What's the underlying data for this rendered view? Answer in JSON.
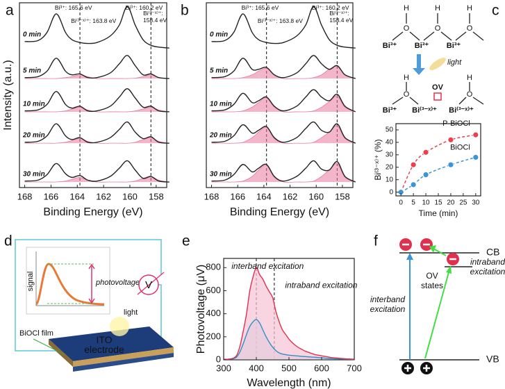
{
  "chart_data": [
    {
      "type": "line",
      "panel": "a",
      "xlabel": "Binding Energy (eV)",
      "ylabel": "Intensity (a.u.)",
      "legend": "left",
      "x": [
        168,
        167,
        166.3,
        165.6,
        164.9,
        164.4,
        163.8,
        163.2,
        162.5,
        161.5,
        160.8,
        160.2,
        159.6,
        159,
        158.4,
        157.8,
        157
      ],
      "xlim": [
        168.4,
        157.2
      ],
      "xticks": [
        168,
        166,
        164,
        162,
        160,
        158
      ],
      "ylim": [
        0,
        10
      ],
      "series": [
        {
          "name": "0 min",
          "color": "#222222",
          "values": [
            7.9,
            7.95,
            8.4,
            9.4,
            8.4,
            8.0,
            7.85,
            7.8,
            7.85,
            8.2,
            8.8,
            9.8,
            8.8,
            8.0,
            7.7,
            7.6,
            7.55
          ]
        },
        {
          "name": "5 min",
          "color": "#222222",
          "values": [
            5.95,
            6.0,
            6.3,
            7.0,
            6.3,
            6.1,
            6.15,
            5.95,
            5.95,
            6.2,
            6.7,
            7.15,
            6.6,
            6.1,
            6.15,
            5.95,
            5.9
          ]
        },
        {
          "name": "10 min",
          "color": "#222222",
          "values": [
            4.15,
            4.2,
            4.5,
            5.2,
            4.5,
            4.3,
            4.4,
            4.15,
            4.15,
            4.4,
            4.9,
            5.35,
            4.85,
            4.35,
            4.4,
            4.15,
            4.1
          ]
        },
        {
          "name": "20 min",
          "color": "#222222",
          "values": [
            2.45,
            2.5,
            2.8,
            3.45,
            2.8,
            2.6,
            2.7,
            2.45,
            2.45,
            2.7,
            3.15,
            3.55,
            3.0,
            2.65,
            2.75,
            2.45,
            2.4
          ]
        },
        {
          "name": "30 min",
          "color": "#222222",
          "values": [
            0.35,
            0.4,
            0.7,
            1.3,
            0.75,
            0.55,
            0.65,
            0.4,
            0.35,
            0.6,
            1.05,
            1.45,
            0.95,
            0.5,
            0.6,
            0.35,
            0.3
          ]
        }
      ],
      "components": [
        {
          "color": "#e8799f",
          "values": [
            5.9,
            5.9,
            5.9,
            5.9,
            5.95,
            6.0,
            6.1,
            6.0,
            5.9,
            5.9,
            5.9,
            5.9,
            5.92,
            6.0,
            6.1,
            5.95,
            5.9
          ]
        },
        {
          "color": "#e8799f",
          "values": [
            4.1,
            4.1,
            4.1,
            4.1,
            4.15,
            4.25,
            4.35,
            4.2,
            4.1,
            4.1,
            4.1,
            4.1,
            4.15,
            4.25,
            4.35,
            4.2,
            4.1
          ]
        },
        {
          "color": "#e8799f",
          "values": [
            2.4,
            2.4,
            2.4,
            2.4,
            2.45,
            2.55,
            2.65,
            2.5,
            2.4,
            2.4,
            2.4,
            2.4,
            2.45,
            2.6,
            2.7,
            2.5,
            2.4
          ]
        },
        {
          "color": "#e8799f",
          "values": [
            0.3,
            0.3,
            0.3,
            0.3,
            0.35,
            0.45,
            0.55,
            0.4,
            0.3,
            0.3,
            0.3,
            0.3,
            0.35,
            0.5,
            0.6,
            0.4,
            0.3
          ]
        }
      ],
      "ref_lines": [
        163.8,
        158.4
      ],
      "annotations": [
        {
          "text": "Bi³⁺: 165.6 eV",
          "color": "#222222"
        },
        {
          "text": "Bi³⁺: 160.2 eV",
          "color": "#222222"
        },
        {
          "text": "Bi⁽³⁻ˣ⁾⁺: 163.8 eV",
          "color": "#d22f5a"
        },
        {
          "text": "Bi⁽³⁻ˣ⁾⁺: 158.4 eV",
          "color": "#d22f5a"
        }
      ]
    },
    {
      "type": "line",
      "panel": "b",
      "xlabel": "Binding Energy (eV)",
      "legend": "left",
      "x": [
        168,
        167,
        166.3,
        165.6,
        164.9,
        164.4,
        163.8,
        163.2,
        162.5,
        161.5,
        160.8,
        160.2,
        159.6,
        159,
        158.4,
        157.8,
        157
      ],
      "xlim": [
        168.4,
        157.2
      ],
      "xticks": [
        168,
        166,
        164,
        162,
        160,
        158
      ],
      "ylim": [
        0,
        10
      ],
      "series": [
        {
          "name": "0 min",
          "color": "#222222",
          "values": [
            7.9,
            7.95,
            8.4,
            9.4,
            8.4,
            8.0,
            7.85,
            7.8,
            7.85,
            8.2,
            8.8,
            9.8,
            8.8,
            8.0,
            7.7,
            7.6,
            7.55
          ]
        },
        {
          "name": "5 min",
          "color": "#222222",
          "values": [
            5.95,
            6.0,
            6.3,
            7.0,
            6.4,
            6.4,
            6.5,
            6.1,
            5.95,
            6.2,
            6.7,
            7.15,
            6.7,
            6.4,
            6.6,
            6.1,
            5.9
          ]
        },
        {
          "name": "10 min",
          "color": "#222222",
          "values": [
            4.15,
            4.2,
            4.5,
            5.1,
            4.6,
            4.7,
            4.9,
            4.4,
            4.15,
            4.4,
            4.9,
            5.3,
            4.9,
            4.7,
            5.05,
            4.4,
            4.1
          ]
        },
        {
          "name": "20 min",
          "color": "#222222",
          "values": [
            2.45,
            2.5,
            2.8,
            3.4,
            2.95,
            3.1,
            3.3,
            2.7,
            2.45,
            2.7,
            3.2,
            3.55,
            3.1,
            3.0,
            3.45,
            2.7,
            2.4
          ]
        },
        {
          "name": "30 min",
          "color": "#222222",
          "values": [
            0.35,
            0.4,
            0.7,
            1.25,
            0.85,
            1.05,
            1.25,
            0.6,
            0.35,
            0.6,
            1.05,
            1.45,
            1.0,
            0.95,
            1.4,
            0.6,
            0.3
          ]
        }
      ],
      "components": [
        {
          "color": "#e8799f",
          "values": [
            5.9,
            5.9,
            5.9,
            5.95,
            6.1,
            6.3,
            6.45,
            6.1,
            5.9,
            5.9,
            5.9,
            5.95,
            6.1,
            6.4,
            6.55,
            6.1,
            5.9
          ]
        },
        {
          "color": "#e8799f",
          "values": [
            4.1,
            4.1,
            4.1,
            4.15,
            4.35,
            4.6,
            4.85,
            4.35,
            4.1,
            4.1,
            4.1,
            4.15,
            4.35,
            4.65,
            4.95,
            4.35,
            4.1
          ]
        },
        {
          "color": "#e8799f",
          "values": [
            2.4,
            2.4,
            2.4,
            2.45,
            2.7,
            3.0,
            3.25,
            2.65,
            2.4,
            2.4,
            2.4,
            2.45,
            2.7,
            3.0,
            3.35,
            2.65,
            2.4
          ]
        },
        {
          "color": "#e8799f",
          "values": [
            0.3,
            0.3,
            0.3,
            0.35,
            0.6,
            0.95,
            1.2,
            0.55,
            0.3,
            0.3,
            0.3,
            0.35,
            0.6,
            0.95,
            1.3,
            0.55,
            0.3
          ]
        }
      ],
      "ref_lines": [
        163.8,
        158.4
      ],
      "annotations": [
        {
          "text": "Bi³⁺: 165.6 eV",
          "color": "#222222"
        },
        {
          "text": "Bi³⁺: 160.2 eV",
          "color": "#222222"
        },
        {
          "text": "Bi⁽³⁻ˣ⁾⁺: 163.8 eV",
          "color": "#d22f5a"
        },
        {
          "text": "Bi⁽³⁻ˣ⁾⁺: 158.4 eV",
          "color": "#d22f5a"
        }
      ]
    },
    {
      "type": "line",
      "xlabel": "Time (min)",
      "ylabel": "Bi⁽³⁻ˣ⁾⁺ (%)",
      "legend": "end",
      "markers": true,
      "linestyle": "dashed",
      "x": [
        0,
        5,
        10,
        20,
        30
      ],
      "xlim": [
        -2,
        32
      ],
      "xticks": [
        0,
        5,
        10,
        15,
        20,
        25,
        30
      ],
      "ylim": [
        -3,
        55
      ],
      "yticks": [
        0,
        10,
        20,
        30,
        40,
        50
      ],
      "series": [
        {
          "name": "P-BiOCl",
          "color": "#e8414f",
          "values": [
            0,
            22,
            32,
            42,
            46
          ]
        },
        {
          "name": "BiOCl",
          "color": "#3a95d8",
          "values": [
            0,
            6,
            14,
            22,
            28
          ]
        }
      ]
    },
    {
      "type": "line",
      "panel": "e",
      "xlabel": "Wavelength (nm)",
      "ylabel": "Photovoltage (μV)",
      "x": [
        300,
        310,
        320,
        330,
        340,
        350,
        360,
        370,
        380,
        390,
        400,
        410,
        420,
        430,
        440,
        450,
        460,
        470,
        480,
        490,
        500,
        510,
        520,
        530,
        540,
        550,
        560,
        570,
        580,
        590,
        600,
        610,
        620,
        630,
        640,
        650,
        660,
        670,
        680,
        690,
        700
      ],
      "xlim": [
        300,
        700
      ],
      "xticks": [
        300,
        400,
        500,
        600,
        700
      ],
      "ylim": [
        0,
        880
      ],
      "yticks": [
        0,
        200,
        400,
        600,
        800
      ],
      "series": [
        {
          "color": "#2f8fc5",
          "fill": "#bfe3ef",
          "values": [
            3,
            4,
            6,
            10,
            25,
            70,
            140,
            220,
            290,
            330,
            350,
            320,
            260,
            200,
            150,
            110,
            80,
            60,
            50,
            45,
            40,
            38,
            35,
            33,
            30,
            28,
            26,
            24,
            22,
            20,
            18,
            15,
            12,
            10,
            9,
            8,
            7,
            6,
            5,
            4,
            3
          ]
        },
        {
          "color": "#e0304e",
          "fill": "#f6c3d5",
          "values": [
            5,
            5,
            8,
            15,
            40,
            120,
            250,
            400,
            600,
            720,
            800,
            740,
            700,
            640,
            590,
            540,
            420,
            330,
            260,
            220,
            180,
            150,
            125,
            105,
            90,
            75,
            65,
            55,
            45,
            40,
            35,
            30,
            25,
            20,
            18,
            15,
            12,
            10,
            8,
            7,
            5
          ]
        }
      ],
      "ref_lines": [
        400,
        455
      ],
      "annotations": [
        {
          "text": "interband excitation",
          "color": "#111111"
        },
        {
          "text": "intraband excitation",
          "color": "#111111"
        }
      ]
    }
  ],
  "diagrams": {
    "c": {
      "panel": "c",
      "before": {
        "h": [
          "H",
          "H",
          "H"
        ],
        "o": [
          "O",
          "O",
          "O"
        ],
        "bi": [
          "Bi³⁺",
          "Bi³⁺",
          "Bi³⁺"
        ]
      },
      "light": "light",
      "after": {
        "h": [
          "H",
          "H"
        ],
        "o": [
          "O",
          "O"
        ],
        "ov": "OV",
        "bi": [
          "Bi³⁺",
          "Bi⁽³⁻ˣ⁾⁺",
          "Bi⁽³⁻ˣ⁾⁺"
        ]
      }
    },
    "d": {
      "panel": "d",
      "signal": "signal",
      "photovoltage": "photovoltage",
      "meter": "V",
      "light": "light",
      "film": "BiOCl film",
      "electrode": "ITO electrode"
    },
    "f": {
      "panel": "f",
      "cb": "CB",
      "vb": "VB",
      "states": "OV states",
      "interband": "interband excitation",
      "intraband": "intraband excitation"
    }
  }
}
